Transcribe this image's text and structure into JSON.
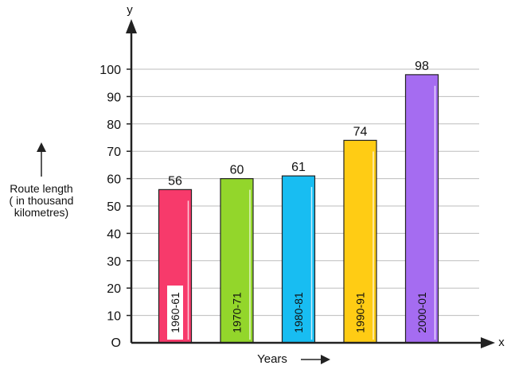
{
  "chart_data": {
    "type": "bar",
    "categories": [
      "1960-61",
      "1970-71",
      "1980-81",
      "1990-91",
      "2000-01"
    ],
    "values": [
      56,
      60,
      61,
      74,
      98
    ],
    "colors": [
      "#f73a6b",
      "#93d62b",
      "#18bdf2",
      "#ffcc14",
      "#a56cf1"
    ],
    "ylim": [
      0,
      100
    ],
    "yticks": [
      10,
      20,
      30,
      40,
      50,
      60,
      70,
      80,
      90,
      100
    ],
    "origin_label": "O",
    "x_axis_letter": "x",
    "y_axis_letter": "y",
    "xlabel": "Years",
    "ylabel_lines": [
      "Route length",
      "( in thousand",
      "kilometres)"
    ],
    "grid": true
  }
}
